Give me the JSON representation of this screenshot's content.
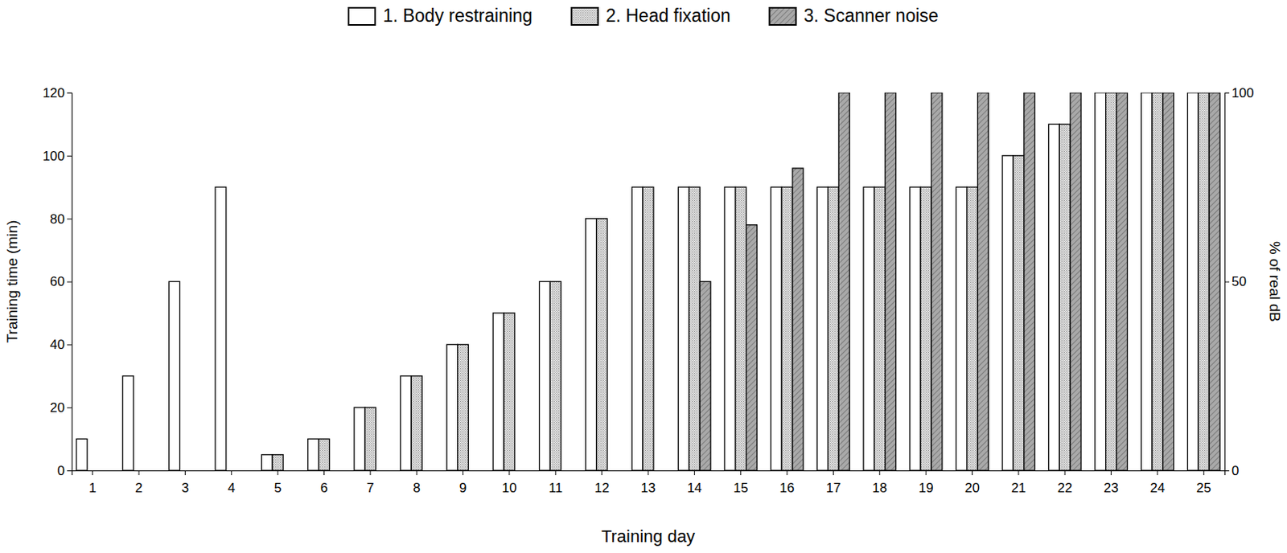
{
  "chart_data": {
    "type": "bar",
    "x_label": "Training day",
    "y_label": "Training time (min)",
    "y2_label": "% of real dB",
    "categories": [
      "1",
      "2",
      "3",
      "4",
      "5",
      "6",
      "7",
      "8",
      "9",
      "10",
      "11",
      "12",
      "13",
      "14",
      "15",
      "16",
      "17",
      "18",
      "19",
      "20",
      "21",
      "22",
      "23",
      "24",
      "25"
    ],
    "series": [
      {
        "name": "1. Body restraining",
        "color": "#ffffff",
        "values": [
          10,
          30,
          60,
          90,
          5,
          10,
          20,
          30,
          40,
          50,
          60,
          80,
          90,
          90,
          90,
          90,
          90,
          90,
          90,
          90,
          100,
          110,
          120,
          120,
          120
        ]
      },
      {
        "name": "2. Head fixation",
        "color": "#e0e0e0",
        "values": [
          null,
          null,
          null,
          null,
          5,
          10,
          20,
          30,
          40,
          50,
          60,
          80,
          90,
          90,
          90,
          90,
          90,
          90,
          90,
          90,
          100,
          110,
          120,
          120,
          120
        ]
      },
      {
        "name": "3. Scanner noise",
        "color": "#a9a9a9",
        "axis": "y2",
        "values": [
          null,
          null,
          null,
          null,
          null,
          null,
          null,
          null,
          null,
          null,
          null,
          null,
          null,
          50,
          65,
          80,
          100,
          100,
          100,
          100,
          100,
          100,
          100,
          100,
          100
        ]
      }
    ],
    "ylim": [
      0,
      120
    ],
    "yticks": [
      0,
      20,
      40,
      60,
      80,
      100,
      120
    ],
    "y2lim": [
      0,
      100
    ],
    "y2ticks": [
      0,
      50,
      100
    ],
    "legend": "top",
    "grid": false
  }
}
